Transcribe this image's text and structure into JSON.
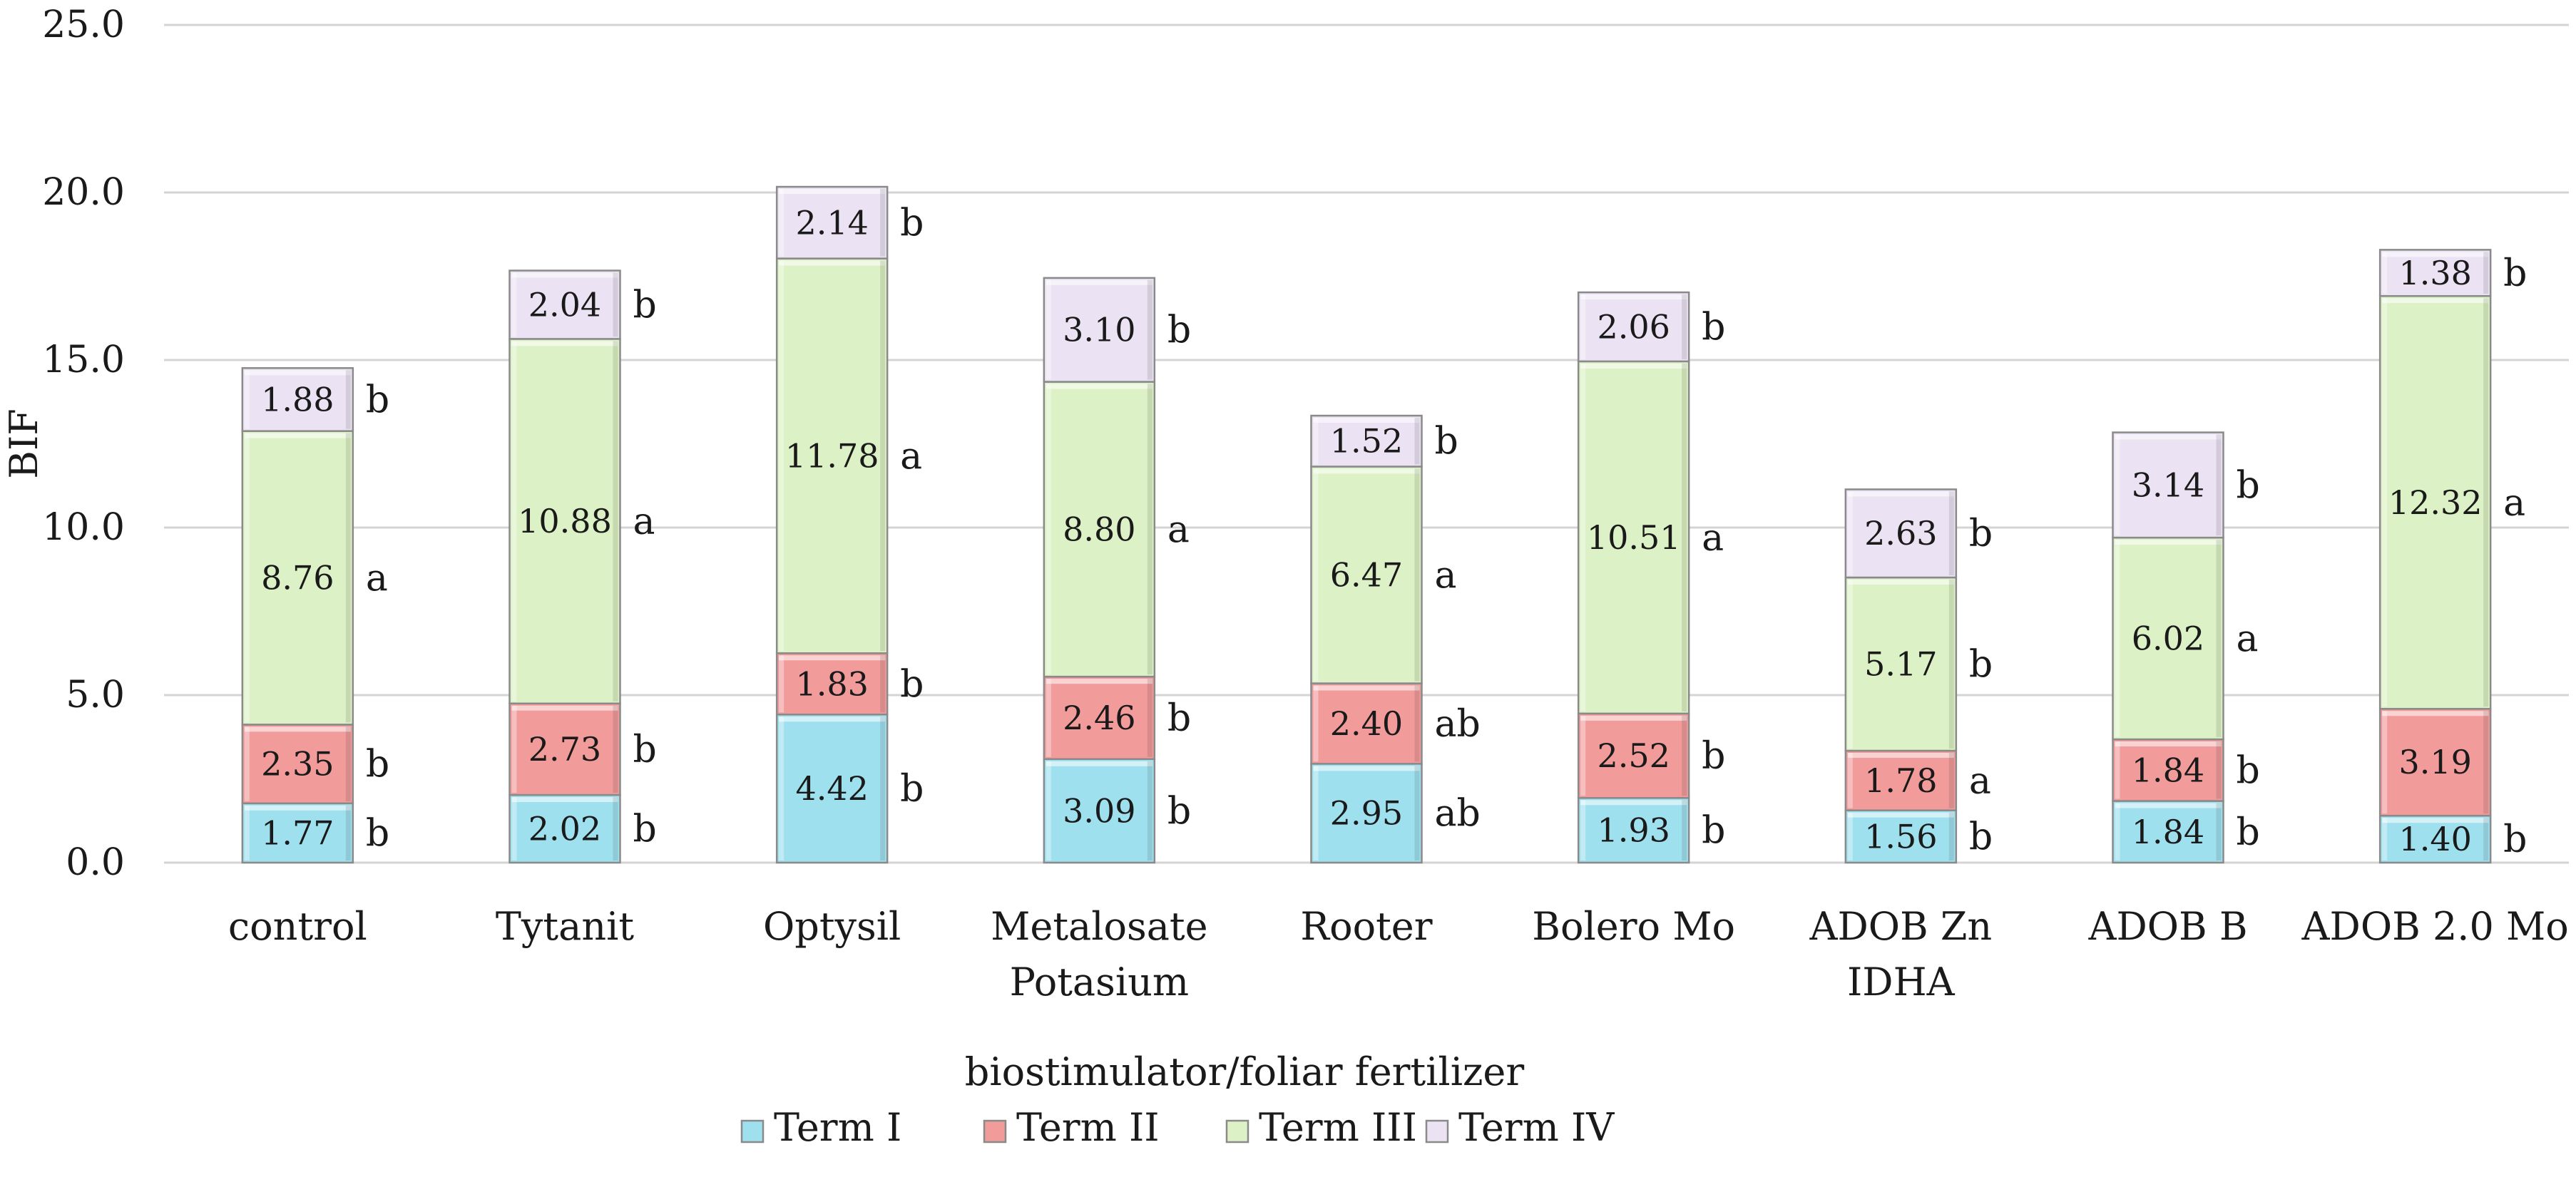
{
  "chart_data": {
    "type": "bar",
    "stacked": true,
    "title": "",
    "xlabel": "biostimulator/foliar  fertilizer",
    "ylabel": "BIF",
    "ylim": [
      0,
      25
    ],
    "yticks": [
      "0.0",
      "5.0",
      "10.0",
      "15.0",
      "20.0",
      "25.0"
    ],
    "grid": true,
    "legend_position": "bottom",
    "categories": [
      [
        "control"
      ],
      [
        "Tytanit"
      ],
      [
        "Optysil"
      ],
      [
        "Metalosate",
        "Potasium"
      ],
      [
        "Rooter"
      ],
      [
        "Bolero Mo"
      ],
      [
        "ADOB Zn",
        "IDHA"
      ],
      [
        "ADOB B"
      ],
      [
        "ADOB 2.0 Mo"
      ]
    ],
    "series": [
      {
        "name": "Term I",
        "color": "#9fe0ee",
        "values": [
          1.77,
          2.02,
          4.42,
          3.09,
          2.95,
          1.93,
          1.56,
          1.84,
          1.4
        ],
        "labels": [
          "1.77",
          "2.02",
          "4.42",
          "3.09",
          "2.95",
          "1.93",
          "1.56",
          "1.84",
          "1.40"
        ],
        "letters": [
          "b",
          "b",
          "b",
          "b",
          "ab",
          "b",
          "b",
          "b",
          "b"
        ]
      },
      {
        "name": "Term II",
        "color": "#f19b9b",
        "values": [
          2.35,
          2.73,
          1.83,
          2.46,
          2.4,
          2.52,
          1.78,
          1.84,
          3.19
        ],
        "labels": [
          "2.35",
          "2.73",
          "1.83",
          "2.46",
          "2.40",
          "2.52",
          "1.78",
          "1.84",
          "3.19"
        ],
        "letters": [
          "b",
          "b",
          "b",
          "b",
          "ab",
          "b",
          "a",
          "b",
          ""
        ]
      },
      {
        "name": "Term III",
        "color": "#dcf1c5",
        "values": [
          8.76,
          10.88,
          11.78,
          8.8,
          6.47,
          10.51,
          5.17,
          6.02,
          12.32
        ],
        "labels": [
          "8.76",
          "10.88",
          "11.78",
          "8.80",
          "6.47",
          "10.51",
          "5.17",
          "6.02",
          "12.32"
        ],
        "letters": [
          "a",
          "a",
          "a",
          "a",
          "a",
          "a",
          "b",
          "a",
          "a"
        ]
      },
      {
        "name": "Term IV",
        "color": "#ebe3f3",
        "values": [
          1.88,
          2.04,
          2.14,
          3.1,
          1.52,
          2.06,
          2.63,
          3.14,
          1.38
        ],
        "labels": [
          "1.88",
          "2.04",
          "2.14",
          "3.10",
          "1.52",
          "2.06",
          "2.63",
          "3.14",
          "1.38"
        ],
        "letters": [
          "b",
          "b",
          "b",
          "b",
          "b",
          "b",
          "b",
          "b",
          "b"
        ]
      }
    ]
  }
}
